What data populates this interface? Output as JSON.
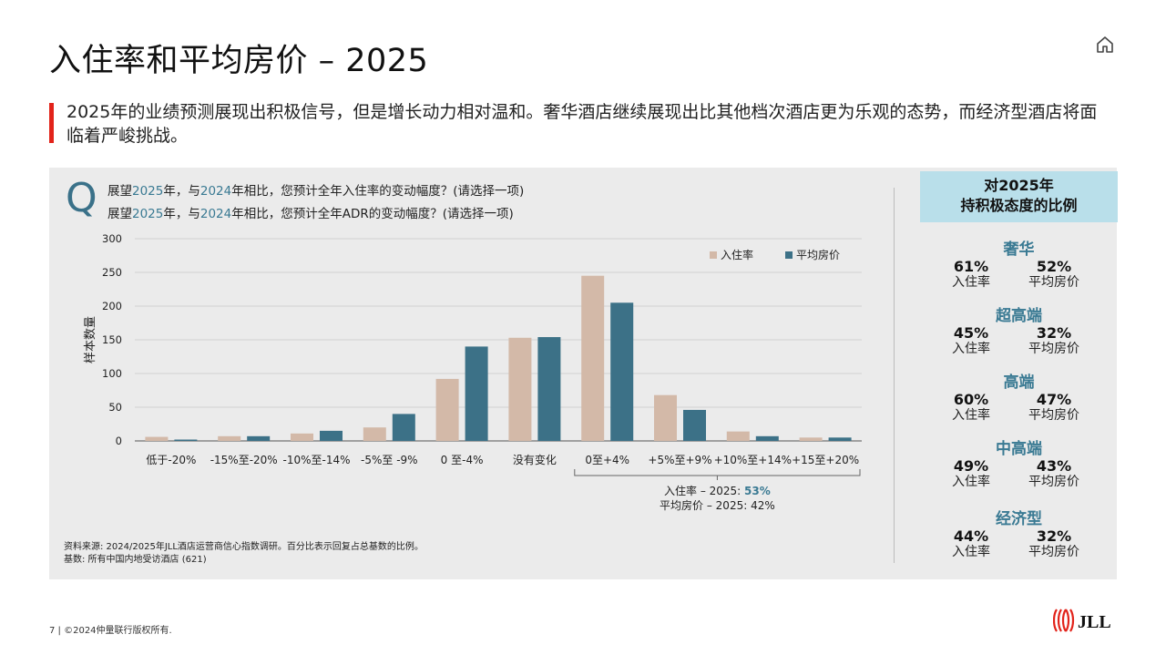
{
  "title": "入住率和平均房价 – 2025",
  "subtitle": "2025年的业绩预测展现出积极信号，但是增长动力相对温和。奢华酒店继续展现出比其他档次酒店更为乐观的态势，而经济型酒店将面临着严峻挑战。",
  "question": {
    "glyph": "Q",
    "line1": {
      "a": "展望",
      "y1": "2025",
      "b": "年，与",
      "y2": "2024",
      "c": "年相比，您预计全年入住率的变动幅度？(请选择一项)"
    },
    "line2": {
      "a": "展望",
      "y1": "2025",
      "b": "年，与",
      "y2": "2024",
      "c": "年相比，您预计全年ADR的变动幅度？(请选择一项)"
    }
  },
  "chart_data": {
    "type": "bar",
    "ylabel": "样本数量",
    "ylim": [
      0,
      300
    ],
    "yticks": [
      0,
      50,
      100,
      150,
      200,
      250,
      300
    ],
    "categories": [
      "低于-20%",
      "-15%至-20%",
      "-10%至-14%",
      "-5%至 -9%",
      "0 至-4%",
      "没有变化",
      "0至+4%",
      "+5%至+9%",
      "+10%至+14%",
      "+15至+20%"
    ],
    "series": [
      {
        "name": "入住率",
        "color": "#d3b9a8",
        "values": [
          6,
          7,
          11,
          20,
          92,
          153,
          245,
          68,
          14,
          5
        ]
      },
      {
        "name": "平均房价",
        "color": "#3c7187",
        "values": [
          2,
          7,
          15,
          40,
          140,
          154,
          205,
          46,
          7,
          5
        ]
      }
    ],
    "legend_position": "top-right",
    "grid": true,
    "annotation": {
      "line1_prefix": "入住率 – 2025: ",
      "line1_value": "53%",
      "line2": "平均房价 – 2025: 42%"
    }
  },
  "source": {
    "line1": "资料来源: 2024/2025年JLL酒店运营商信心指数调研。百分比表示回复占总基数的比例。",
    "line2": "基数: 所有中国内地受访酒店 (621)"
  },
  "sidebar": {
    "title_line1": "对2025年",
    "title_line2": "持积极态度的比例",
    "left_label": "入住率",
    "right_label": "平均房价",
    "segments": [
      {
        "name": "奢华",
        "occ": "61%",
        "adr": "52%"
      },
      {
        "name": "超高端",
        "occ": "45%",
        "adr": "32%"
      },
      {
        "name": "高端",
        "occ": "60%",
        "adr": "47%"
      },
      {
        "name": "中高端",
        "occ": "49%",
        "adr": "43%"
      },
      {
        "name": "经济型",
        "occ": "44%",
        "adr": "32%"
      }
    ]
  },
  "footer": "7 | ©2024仲量联行版权所有.",
  "logo_text": "JLL",
  "colors": {
    "accent_red": "#e2231a",
    "teal": "#3a7a93",
    "sidebar_head_bg": "#b9dfea",
    "panel_bg": "#ebebeb"
  }
}
